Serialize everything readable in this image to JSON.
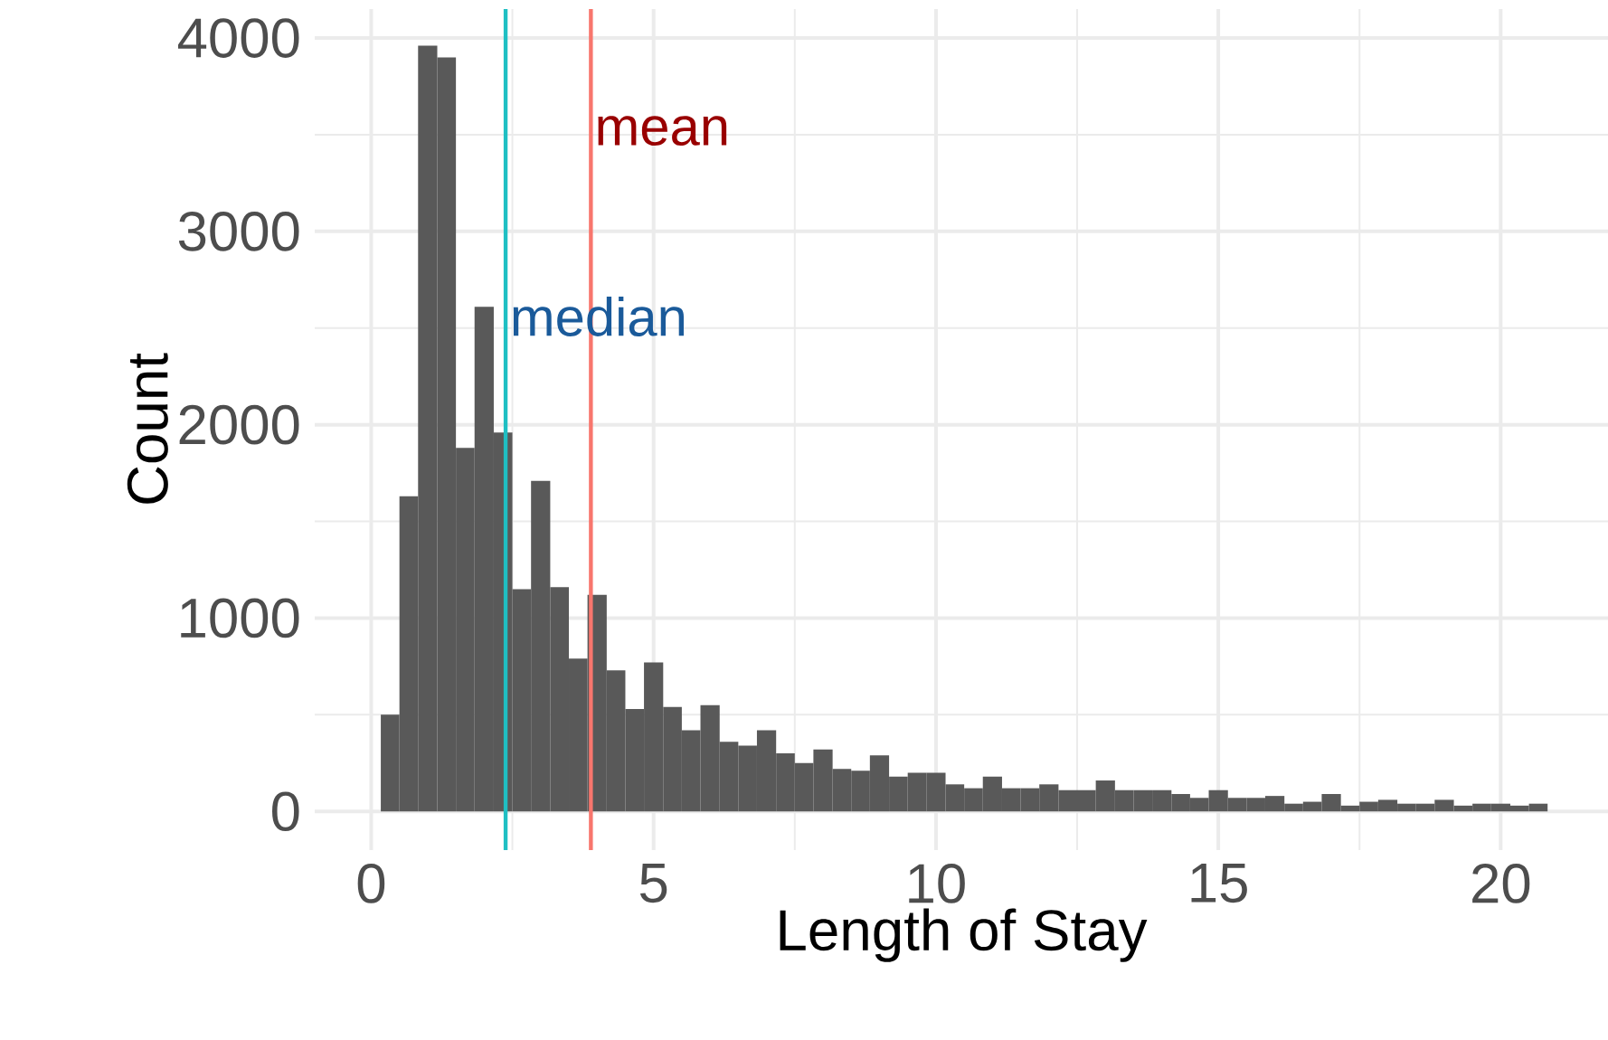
{
  "chart_data": {
    "type": "histogram",
    "xlabel": "Length of Stay",
    "ylabel": "Count",
    "color": "#595959",
    "bins": [
      0.17,
      0.5,
      0.83,
      1.17,
      1.5,
      1.83,
      2.17,
      2.5,
      2.83,
      3.17,
      3.5,
      3.83,
      4.17,
      4.5,
      4.83,
      5.17,
      5.5,
      5.83,
      6.17,
      6.5,
      6.83,
      7.17,
      7.5,
      7.83,
      8.17,
      8.5,
      8.83,
      9.17,
      9.5,
      9.83,
      10.17,
      10.5,
      10.83,
      11.17,
      11.5,
      11.83,
      12.17,
      12.5,
      12.83,
      13.17,
      13.5,
      13.83,
      14.17,
      14.5,
      14.83,
      15.17,
      15.5,
      15.83,
      16.17,
      16.5,
      16.83,
      17.17,
      17.5,
      17.83,
      18.17,
      18.5,
      18.83,
      19.17,
      19.5,
      19.83,
      20.17,
      20.5,
      20.83
    ],
    "values": [
      500,
      1630,
      3960,
      3900,
      1880,
      2610,
      1960,
      1150,
      1710,
      1160,
      790,
      1120,
      730,
      530,
      770,
      540,
      420,
      550,
      360,
      340,
      420,
      300,
      250,
      320,
      220,
      210,
      290,
      180,
      200,
      200,
      140,
      120,
      180,
      120,
      120,
      140,
      110,
      110,
      160,
      110,
      110,
      110,
      90,
      70,
      110,
      70,
      70,
      80,
      40,
      50,
      90,
      30,
      50,
      60,
      40,
      40,
      60,
      30,
      40,
      40,
      30,
      40
    ],
    "xlim": [
      -1.0,
      21.9
    ],
    "ylim": [
      -200,
      4150
    ],
    "xticks": [
      0,
      5,
      10,
      15,
      20
    ],
    "yticks": [
      0,
      1000,
      2000,
      3000,
      4000
    ],
    "grid": true,
    "ref_lines": [
      {
        "axis": "x",
        "value": 3.89,
        "color": "#f8766d"
      },
      {
        "axis": "x",
        "value": 2.38,
        "color": "#1fbfc3"
      }
    ],
    "annotations": [
      {
        "text": "mean",
        "x": 3.95,
        "y": 3520
      },
      {
        "text": "median",
        "x": 2.45,
        "y": 2560
      }
    ]
  }
}
